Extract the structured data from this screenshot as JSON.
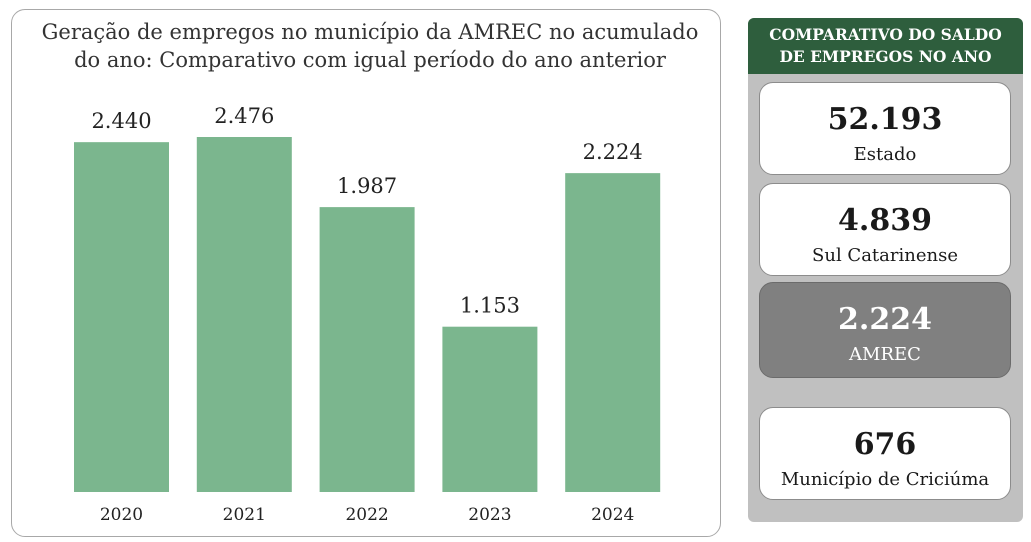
{
  "chart_data": {
    "type": "bar",
    "title": "Geração de empregos no município da AMREC no acumulado do ano: Comparativo com igual período do ano anterior",
    "title_lines": [
      "Geração de empregos no município da AMREC no acumulado",
      "do ano: Comparativo com igual período do ano anterior"
    ],
    "categories": [
      "2020",
      "2021",
      "2022",
      "2023",
      "2024"
    ],
    "values": [
      2440,
      2476,
      1987,
      1153,
      2224
    ],
    "value_labels": [
      "2.440",
      "2.476",
      "1.987",
      "1.153",
      "2.224"
    ],
    "bar_color": "#7bb68e",
    "xlabel": "",
    "ylabel": "",
    "ylim": [
      0,
      2750
    ],
    "grid": false,
    "legend": "none"
  },
  "sidebar": {
    "header_lines": [
      "COMPARATIVO DO SALDO",
      "DE EMPREGOS NO ANO"
    ],
    "header_color": "#2e5e3d",
    "cards": [
      {
        "value": "52.193",
        "label": "Estado",
        "highlight": false
      },
      {
        "value": "4.839",
        "label": "Sul Catarinense",
        "highlight": false
      },
      {
        "value": "2.224",
        "label": "AMREC",
        "highlight": true
      },
      {
        "value": "676",
        "label": "Município de Criciúma",
        "highlight": false
      }
    ]
  }
}
